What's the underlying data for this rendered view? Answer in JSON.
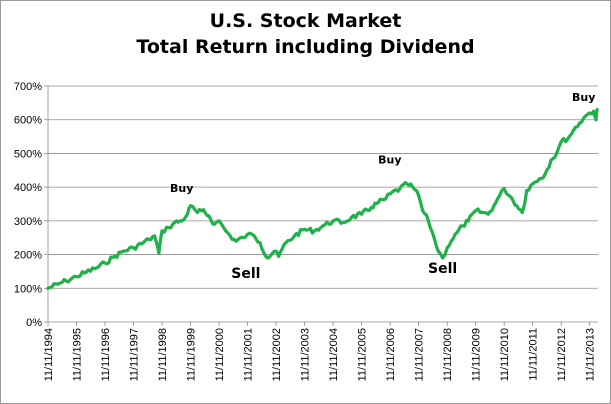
{
  "chart_data": {
    "type": "line",
    "title_lines": [
      "U.S. Stock Market",
      "Total Return including Dividend"
    ],
    "ylim": [
      0,
      700
    ],
    "yticks": [
      0,
      100,
      200,
      300,
      400,
      500,
      600,
      700
    ],
    "ytick_labels": [
      "0%",
      "100%",
      "200%",
      "300%",
      "400%",
      "500%",
      "600%",
      "700%"
    ],
    "xlim": [
      1994.86,
      2014.15
    ],
    "xticks": [
      1994.86,
      1995.86,
      1996.86,
      1997.86,
      1998.86,
      1999.86,
      2000.86,
      2001.86,
      2002.86,
      2003.86,
      2004.86,
      2005.86,
      2006.86,
      2007.86,
      2008.86,
      2009.86,
      2010.86,
      2011.86,
      2012.86,
      2013.86
    ],
    "xtick_labels": [
      "11/11/1994",
      "11/11/1995",
      "11/11/1996",
      "11/11/1997",
      "11/11/1998",
      "11/11/1999",
      "11/11/2000",
      "11/11/2001",
      "11/11/2002",
      "11/11/2003",
      "11/11/2004",
      "11/11/2005",
      "11/11/2006",
      "11/11/2007",
      "11/11/2008",
      "11/11/2009",
      "11/11/2010",
      "11/11/2011",
      "11/11/2012",
      "11/11/2013"
    ],
    "grid": true,
    "line_color": "#22b04b",
    "series": [
      {
        "x": [
          1994.86,
          1995.2,
          1995.5,
          1995.86,
          1996.2,
          1996.5,
          1996.86,
          1997.2,
          1997.5,
          1997.86,
          1998.2,
          1998.4,
          1998.6,
          1998.75,
          1998.86,
          1999.1,
          1999.3,
          1999.55,
          1999.75,
          1999.86,
          2000.1,
          2000.25,
          2000.5,
          2000.7,
          2000.86,
          2001.1,
          2001.25,
          2001.45,
          2001.7,
          2001.86,
          2002.1,
          2002.3,
          2002.55,
          2002.8,
          2002.95,
          2003.2,
          2003.5,
          2003.86,
          2004.2,
          2004.5,
          2004.86,
          2005.2,
          2005.5,
          2005.86,
          2006.2,
          2006.45,
          2006.7,
          2006.86,
          2007.2,
          2007.45,
          2007.65,
          2007.86,
          2008.0,
          2008.2,
          2008.4,
          2008.55,
          2008.7,
          2008.86,
          2009.0,
          2009.2,
          2009.4,
          2009.6,
          2009.86,
          2010.1,
          2010.3,
          2010.5,
          2010.7,
          2010.86,
          2011.1,
          2011.3,
          2011.5,
          2011.65,
          2011.86,
          2012.1,
          2012.3,
          2012.5,
          2012.7,
          2012.86,
          2013.1,
          2013.3,
          2013.5,
          2013.7,
          2013.86,
          2014.0,
          2014.08,
          2014.12
        ],
        "y": [
          100,
          112,
          122,
          135,
          148,
          158,
          175,
          195,
          210,
          220,
          235,
          245,
          255,
          205,
          270,
          280,
          295,
          300,
          320,
          345,
          325,
          330,
          315,
          290,
          300,
          270,
          255,
          240,
          250,
          260,
          255,
          235,
          190,
          210,
          195,
          235,
          255,
          275,
          270,
          285,
          300,
          295,
          310,
          320,
          340,
          355,
          365,
          380,
          395,
          410,
          400,
          375,
          330,
          300,
          250,
          210,
          190,
          220,
          240,
          265,
          285,
          300,
          330,
          325,
          320,
          345,
          375,
          395,
          370,
          345,
          325,
          390,
          410,
          425,
          440,
          480,
          500,
          535,
          545,
          570,
          590,
          610,
          620,
          625,
          600,
          630
        ]
      }
    ],
    "annotations": [
      {
        "text": "Buy",
        "x": 1999.55,
        "y": 385,
        "size": 11
      },
      {
        "text": "Sell",
        "x": 2001.8,
        "y": 130,
        "size": 14
      },
      {
        "text": "Buy",
        "x": 2006.85,
        "y": 470,
        "size": 11
      },
      {
        "text": "Sell",
        "x": 2008.7,
        "y": 145,
        "size": 14
      },
      {
        "text": "Buy",
        "x": 2013.65,
        "y": 655,
        "size": 11
      }
    ]
  }
}
